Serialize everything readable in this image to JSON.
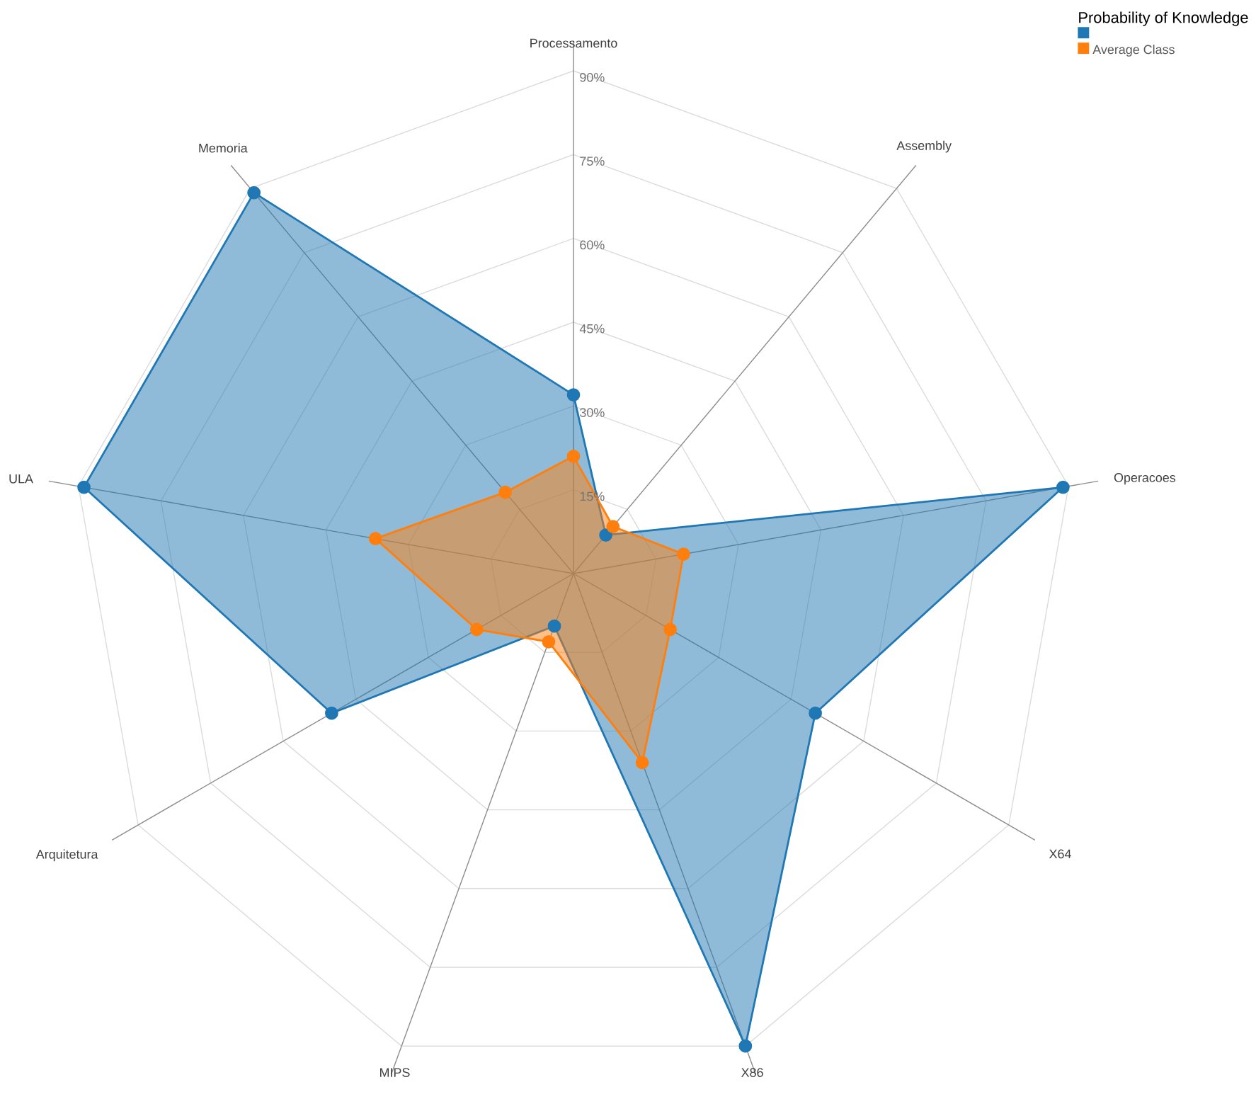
{
  "chart_data": {
    "type": "radar",
    "legend_title": "Probability of Knowledge",
    "categories": [
      "Processamento",
      "Assembly",
      "Operacoes",
      "X64",
      "X86",
      "MIPS",
      "Arquitetura",
      "ULA",
      "Memoria"
    ],
    "series": [
      {
        "color": "#1f77b4",
        "values": [
          32,
          9,
          89,
          50,
          90,
          10,
          50,
          89,
          89
        ]
      },
      {
        "name": "Average Class",
        "color": "#ff7f0e",
        "values": [
          21,
          11,
          20,
          20,
          36,
          13,
          20,
          36,
          19
        ]
      }
    ],
    "ylim": [
      0,
      90
    ],
    "yticks": [
      {
        "value": 15,
        "label": "15%"
      },
      {
        "value": 30,
        "label": "30%"
      },
      {
        "value": 45,
        "label": "45%"
      },
      {
        "value": 60,
        "label": "60%"
      },
      {
        "value": 75,
        "label": "75%"
      },
      {
        "value": 90,
        "label": "90%"
      }
    ],
    "grid": true,
    "marker": "circle",
    "legend": "top right"
  }
}
